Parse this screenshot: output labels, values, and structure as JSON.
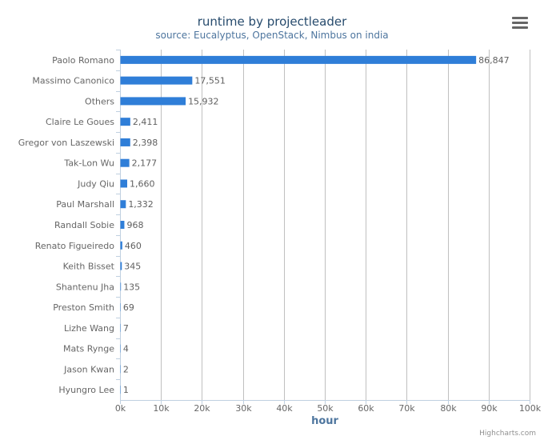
{
  "chart_data": {
    "type": "bar",
    "orientation": "horizontal",
    "title": "runtime by projectleader",
    "subtitle": "source: Eucalyptus, OpenStack, Nimbus on india",
    "xlabel": "hour",
    "ylabel": "",
    "xlim": [
      0,
      100000
    ],
    "tick_values": [
      0,
      10000,
      20000,
      30000,
      40000,
      50000,
      60000,
      70000,
      80000,
      90000,
      100000
    ],
    "tick_labels": [
      "0k",
      "10k",
      "20k",
      "30k",
      "40k",
      "50k",
      "60k",
      "70k",
      "80k",
      "90k",
      "100k"
    ],
    "grid": true,
    "legend": false,
    "categories": [
      "Paolo Romano",
      "Massimo Canonico",
      "Others",
      "Claire Le Goues",
      "Gregor von Laszewski",
      "Tak-Lon Wu",
      "Judy Qiu",
      "Paul Marshall",
      "Randall Sobie",
      "Renato Figueiredo",
      "Keith Bisset",
      "Shantenu Jha",
      "Preston Smith",
      "Lizhe Wang",
      "Mats Rynge",
      "Jason Kwan",
      "Hyungro Lee"
    ],
    "values": [
      86847,
      17551,
      15932,
      2411,
      2398,
      2177,
      1660,
      1332,
      968,
      460,
      345,
      135,
      69,
      7,
      4,
      2,
      1
    ],
    "data_labels": [
      "86,847",
      "17,551",
      "15,932",
      "2,411",
      "2,398",
      "2,177",
      "1,660",
      "1,332",
      "968",
      "460",
      "345",
      "135",
      "69",
      "7",
      "4",
      "2",
      "1"
    ],
    "bar_color": "#2f7ed8"
  },
  "credits": "Highcharts.com",
  "menu_icon": "menu-icon"
}
